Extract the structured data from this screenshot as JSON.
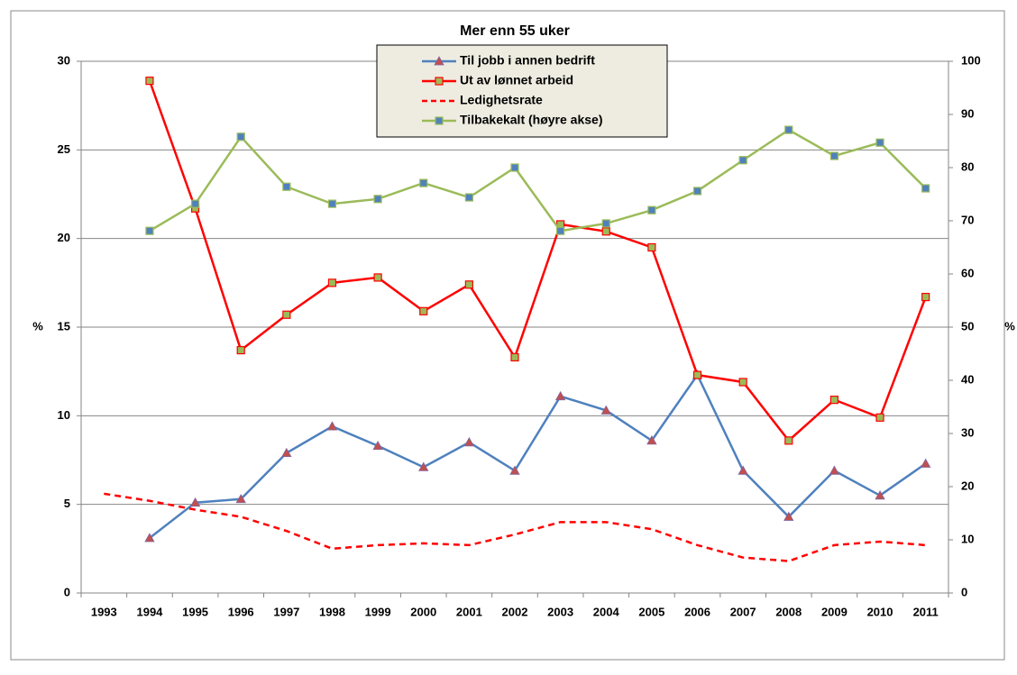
{
  "chart_data": {
    "type": "line",
    "title": "Mer enn 55 uker",
    "ylabel": "%",
    "y2label": "%",
    "categories": [
      "1993",
      "1994",
      "1995",
      "1996",
      "1997",
      "1998",
      "1999",
      "2000",
      "2001",
      "2002",
      "2003",
      "2004",
      "2005",
      "2006",
      "2007",
      "2008",
      "2009",
      "2010",
      "2011"
    ],
    "ylim": [
      0,
      30
    ],
    "yticks": [
      0,
      5,
      10,
      15,
      20,
      25,
      30
    ],
    "y2lim": [
      0,
      100
    ],
    "y2ticks": [
      0,
      10,
      20,
      30,
      40,
      50,
      60,
      70,
      80,
      90,
      100
    ],
    "grid": true,
    "series": [
      {
        "name": "Til jobb i annen bedrift",
        "color": "#4f81bd",
        "marker": "triangle",
        "values": [
          null,
          3.1,
          5.1,
          5.3,
          7.9,
          9.4,
          8.3,
          7.1,
          8.5,
          6.9,
          11.1,
          10.3,
          8.6,
          12.3,
          6.9,
          4.3,
          6.9,
          5.5,
          7.3
        ]
      },
      {
        "name": "Ut av lønnet arbeid",
        "color": "#ff0000",
        "marker": "square",
        "values": [
          null,
          28.9,
          21.7,
          13.7,
          15.7,
          17.5,
          17.8,
          15.9,
          17.4,
          13.3,
          20.8,
          20.4,
          19.5,
          12.3,
          11.9,
          8.6,
          10.9,
          9.9,
          16.7
        ]
      },
      {
        "name": "Ledighetsrate",
        "color": "#ff0000",
        "dashed": true,
        "values": [
          5.6,
          5.2,
          4.7,
          4.3,
          3.5,
          2.5,
          2.7,
          2.8,
          2.7,
          3.3,
          4.0,
          4.0,
          3.6,
          2.7,
          2.0,
          1.8,
          2.7,
          2.9,
          2.7
        ]
      },
      {
        "name": "Tilbakekalt (høyre akse)",
        "color": "#9bbb59",
        "marker": "square",
        "axis": "y2",
        "values": [
          null,
          68.1,
          73.2,
          85.8,
          76.4,
          73.2,
          74.1,
          77.1,
          74.4,
          80.0,
          68.1,
          69.5,
          72.0,
          75.6,
          81.4,
          87.1,
          82.2,
          84.7,
          76.1
        ]
      }
    ]
  }
}
